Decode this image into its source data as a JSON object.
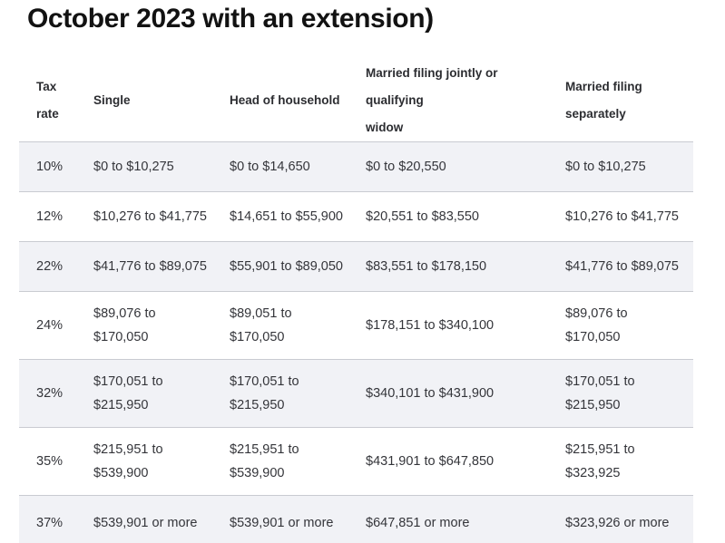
{
  "page": {
    "title": "October 2023 with an extension)"
  },
  "theme": {
    "stripe_row_bg": "#f1f2f6",
    "row_border": "#c9cbd1",
    "cell_text": "#34353a",
    "title_text": "#121212",
    "page_bg": "#ffffff"
  },
  "table": {
    "columns": [
      "Tax\nrate",
      "Single",
      "Head of household",
      "Married filing jointly or qualifying\nwidow",
      "Married filing\nseparately"
    ],
    "rows": [
      {
        "rate": "10%",
        "single": "$0 to $10,275",
        "hoh": "$0 to $14,650",
        "mfj": "$0 to $20,550",
        "mfs": "$0 to $10,275"
      },
      {
        "rate": "12%",
        "single": "$10,276 to $41,775",
        "hoh": "$14,651 to $55,900",
        "mfj": "$20,551 to $83,550",
        "mfs": "$10,276 to $41,775"
      },
      {
        "rate": "22%",
        "single": "$41,776 to $89,075",
        "hoh": "$55,901 to $89,050",
        "mfj": "$83,551 to $178,150",
        "mfs": "$41,776 to $89,075"
      },
      {
        "rate": "24%",
        "single": "$89,076 to\n$170,050",
        "hoh": "$89,051 to\n$170,050",
        "mfj": "$178,151 to $340,100",
        "mfs": "$89,076 to\n$170,050"
      },
      {
        "rate": "32%",
        "single": "$170,051 to\n$215,950",
        "hoh": "$170,051 to\n$215,950",
        "mfj": "$340,101 to $431,900",
        "mfs": "$170,051 to\n$215,950"
      },
      {
        "rate": "35%",
        "single": "$215,951 to\n$539,900",
        "hoh": "$215,951 to\n$539,900",
        "mfj": "$431,901 to $647,850",
        "mfs": "$215,951 to\n$323,925"
      },
      {
        "rate": "37%",
        "single": "$539,901 or more",
        "hoh": "$539,901 or more",
        "mfj": "$647,851 or more",
        "mfs": "$323,926 or more"
      }
    ]
  }
}
